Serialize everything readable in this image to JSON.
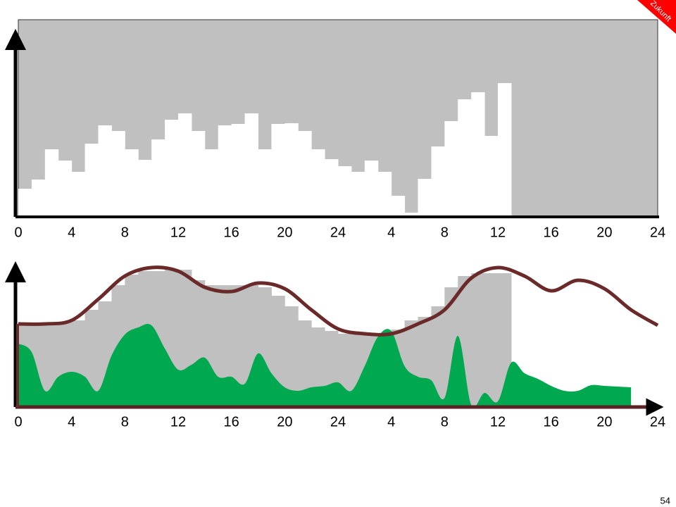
{
  "chart_data": [
    {
      "type": "bar",
      "color": "#ffffff",
      "background": "#c0c0c0",
      "xlim": [
        0,
        48
      ],
      "ylim": [
        0,
        280
      ],
      "x": [
        0,
        1,
        2,
        3,
        4,
        5,
        6,
        7,
        8,
        9,
        10,
        11,
        12,
        13,
        14,
        15,
        16,
        17,
        18,
        19,
        20,
        21,
        22,
        23,
        24,
        25,
        26,
        27,
        28,
        29,
        30,
        31,
        32,
        33,
        34,
        35,
        36
      ],
      "values": [
        40,
        53,
        96,
        80,
        64,
        104,
        130,
        122,
        96,
        81,
        110,
        138,
        147,
        122,
        96,
        130,
        132,
        147,
        96,
        132,
        133,
        122,
        96,
        82,
        72,
        64,
        80,
        64,
        30,
        6,
        54,
        100,
        136,
        167,
        177,
        115,
        190
      ],
      "xticks": [
        0,
        4,
        8,
        12,
        16,
        20,
        24,
        {
          "value": 28,
          "label": "4"
        },
        {
          "value": 32,
          "label": "8"
        },
        {
          "value": 36,
          "label": "12"
        },
        {
          "value": 40,
          "label": "16"
        },
        {
          "value": 44,
          "label": "20"
        },
        {
          "value": 48,
          "label": "24"
        }
      ]
    },
    {
      "type": "area",
      "xlim": [
        0,
        48
      ],
      "ylim": [
        0,
        210
      ],
      "xticks": [
        0,
        4,
        8,
        12,
        16,
        20,
        24,
        {
          "value": 28,
          "label": "4"
        },
        {
          "value": 32,
          "label": "8"
        },
        {
          "value": 36,
          "label": "12"
        },
        {
          "value": 40,
          "label": "16"
        },
        {
          "value": 44,
          "label": "20"
        },
        {
          "value": 48,
          "label": "24"
        }
      ],
      "series": [
        {
          "kind": "bar",
          "color": "#c0c0c0",
          "x": [
            0,
            1,
            2,
            3,
            4,
            5,
            6,
            7,
            8,
            9,
            10,
            11,
            12,
            13,
            14,
            15,
            16,
            17,
            18,
            19,
            20,
            21,
            22,
            23,
            24,
            25,
            26,
            27,
            28,
            29,
            30,
            31,
            32,
            33,
            34,
            35,
            36
          ],
          "values": [
            118,
            118,
            120,
            120,
            123,
            138,
            150,
            173,
            188,
            193,
            193,
            195,
            195,
            180,
            173,
            173,
            173,
            173,
            170,
            158,
            143,
            123,
            113,
            108,
            104,
            104,
            104,
            104,
            110,
            123,
            128,
            143,
            170,
            186,
            190,
            190,
            190
          ]
        },
        {
          "kind": "area",
          "color": "#00a94f",
          "x": [
            0,
            1,
            2,
            3,
            4,
            5,
            6,
            7,
            8,
            9,
            10,
            11,
            12,
            13,
            14,
            15,
            16,
            17,
            18,
            19,
            20,
            21,
            22,
            23,
            24,
            25,
            26,
            27,
            28,
            29,
            30,
            31,
            32,
            33,
            34,
            35,
            36,
            37,
            38,
            39,
            40,
            41,
            42,
            43,
            44,
            45,
            46
          ],
          "values": [
            90,
            78,
            23,
            43,
            50,
            43,
            23,
            73,
            103,
            113,
            116,
            83,
            53,
            60,
            70,
            43,
            43,
            33,
            76,
            48,
            28,
            23,
            28,
            30,
            35,
            23,
            58,
            100,
            108,
            58,
            43,
            38,
            13,
            101,
            3,
            20,
            8,
            63,
            48,
            40,
            30,
            23,
            23,
            31,
            30,
            29,
            28
          ]
        },
        {
          "kind": "line",
          "color": "#6b2a2a",
          "x": [
            0,
            2,
            4,
            6,
            8,
            10,
            12,
            14,
            16,
            18,
            20,
            22,
            24,
            26,
            28,
            30,
            32,
            34,
            36,
            38,
            40,
            42,
            44,
            46,
            48
          ],
          "values": [
            118,
            118,
            123,
            153,
            186,
            198,
            193,
            170,
            164,
            176,
            168,
            138,
            111,
            104,
            104,
            118,
            138,
            183,
            198,
            186,
            165,
            180,
            168,
            138,
            116
          ]
        }
      ]
    }
  ],
  "slide": {
    "badge": "Zukunft",
    "page_number": "54"
  }
}
